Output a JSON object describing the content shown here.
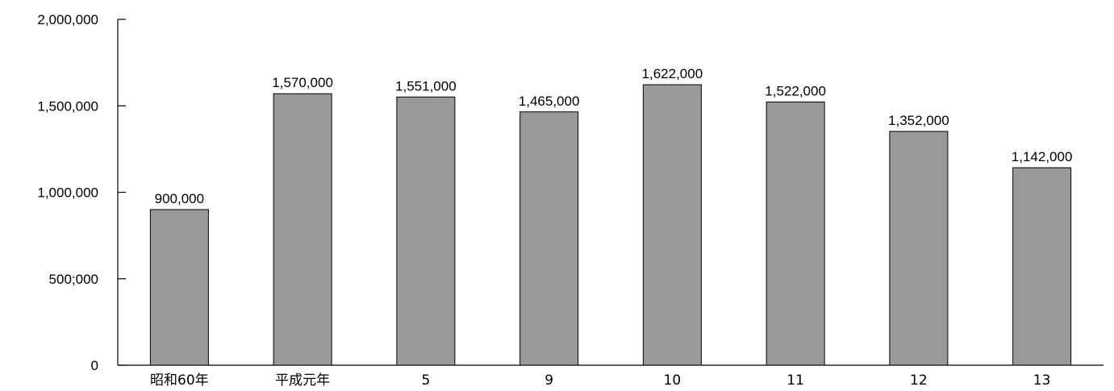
{
  "chart_data": {
    "type": "bar",
    "title": "",
    "xlabel": "",
    "ylabel": "",
    "categories": [
      "昭和60年",
      "平成元年",
      "5",
      "9",
      "10",
      "11",
      "12",
      "13"
    ],
    "values": [
      900000,
      1570000,
      1551000,
      1465000,
      1622000,
      1522000,
      1352000,
      1142000
    ],
    "value_labels": [
      "900,000",
      "1,570,000",
      "1,551,000",
      "1,465,000",
      "1,622,000",
      "1,522,000",
      "1,352,000",
      "1,142,000"
    ],
    "ylim": [
      0,
      2000000
    ],
    "yticks": [
      0,
      500000,
      1000000,
      1500000,
      2000000
    ],
    "ytick_labels": [
      "0",
      "500;000",
      "1,000,000",
      "1,500,000",
      "2,000,000"
    ],
    "grid": false,
    "bar_color": "#999999"
  }
}
